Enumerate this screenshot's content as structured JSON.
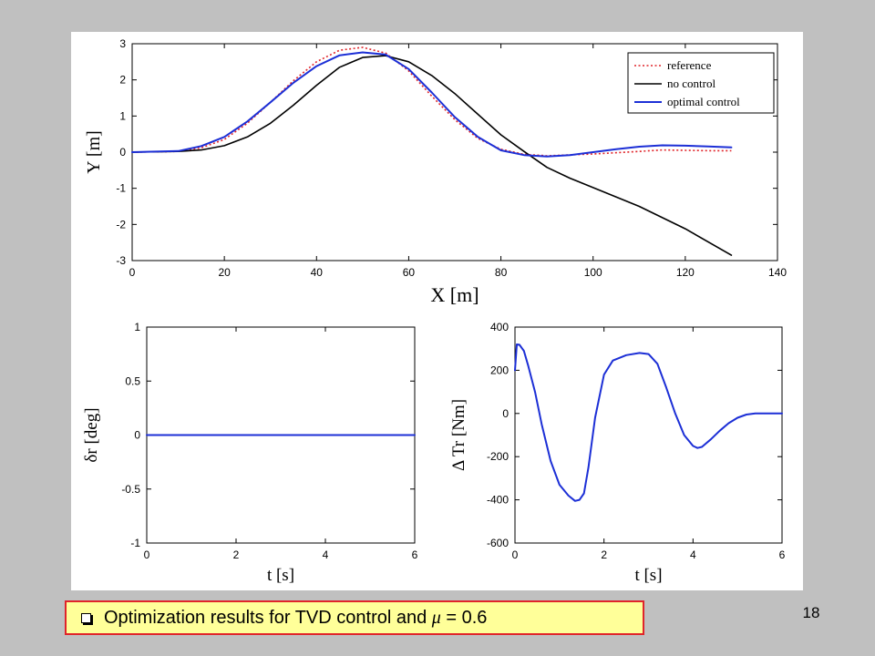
{
  "chart_data": [
    {
      "type": "line",
      "xlabel": "X [m]",
      "ylabel": "Y [m]",
      "xlim": [
        0,
        140
      ],
      "ylim": [
        -3,
        3
      ],
      "xticks": [
        0,
        20,
        40,
        60,
        80,
        100,
        120,
        140
      ],
      "yticks": [
        -3,
        -2,
        -1,
        0,
        1,
        2,
        3
      ],
      "grid": false,
      "legend_position": "top-right",
      "series": [
        {
          "name": "reference",
          "color": "#e0242a",
          "dash": "dotted",
          "x": [
            0,
            10,
            15,
            20,
            25,
            30,
            35,
            40,
            45,
            50,
            55,
            60,
            65,
            70,
            75,
            80,
            85,
            90,
            100,
            110,
            115,
            120,
            125,
            130
          ],
          "y": [
            0,
            0.02,
            0.12,
            0.35,
            0.8,
            1.38,
            1.98,
            2.5,
            2.82,
            2.9,
            2.74,
            2.25,
            1.55,
            0.9,
            0.38,
            0.08,
            -0.06,
            -0.1,
            -0.05,
            0.02,
            0.06,
            0.05,
            0.04,
            0.04
          ]
        },
        {
          "name": "no control",
          "color": "#000000",
          "dash": "solid",
          "x": [
            0,
            10,
            15,
            20,
            25,
            30,
            35,
            40,
            45,
            50,
            55,
            60,
            65,
            70,
            75,
            80,
            85,
            90,
            95,
            100,
            110,
            120,
            130
          ],
          "y": [
            0,
            0.02,
            0.06,
            0.18,
            0.42,
            0.8,
            1.3,
            1.85,
            2.35,
            2.62,
            2.67,
            2.5,
            2.12,
            1.62,
            1.05,
            0.48,
            0.02,
            -0.42,
            -0.72,
            -0.98,
            -1.5,
            -2.12,
            -2.85
          ]
        },
        {
          "name": "optimal control",
          "color": "#1c2fd6",
          "dash": "solid",
          "x": [
            0,
            10,
            15,
            20,
            25,
            30,
            35,
            40,
            45,
            50,
            55,
            60,
            65,
            70,
            75,
            80,
            85,
            90,
            95,
            100,
            105,
            110,
            115,
            120,
            125,
            130
          ],
          "y": [
            0,
            0.03,
            0.17,
            0.42,
            0.85,
            1.38,
            1.92,
            2.38,
            2.68,
            2.76,
            2.7,
            2.3,
            1.65,
            0.97,
            0.42,
            0.05,
            -0.08,
            -0.12,
            -0.08,
            0,
            0.08,
            0.15,
            0.19,
            0.18,
            0.16,
            0.13
          ]
        }
      ]
    },
    {
      "type": "line",
      "xlabel": "t [s]",
      "ylabel": "δr [deg]",
      "xlim": [
        0,
        6
      ],
      "ylim": [
        -1,
        1
      ],
      "xticks": [
        0,
        2,
        4,
        6
      ],
      "yticks": [
        -1,
        -0.5,
        0,
        0.5,
        1
      ],
      "grid": false,
      "series": [
        {
          "color": "#1c2fd6",
          "x": [
            0,
            6
          ],
          "y": [
            0,
            0
          ]
        }
      ]
    },
    {
      "type": "line",
      "xlabel": "t [s]",
      "ylabel": "Δ Tr [Nm]",
      "xlim": [
        0,
        6
      ],
      "ylim": [
        -600,
        400
      ],
      "xticks": [
        0,
        2,
        4,
        6
      ],
      "yticks": [
        -600,
        -400,
        -200,
        0,
        200,
        400
      ],
      "grid": false,
      "series": [
        {
          "color": "#1c2fd6",
          "x": [
            0,
            0.04,
            0.1,
            0.2,
            0.3,
            0.45,
            0.6,
            0.8,
            1.0,
            1.2,
            1.35,
            1.45,
            1.55,
            1.65,
            1.8,
            2.0,
            2.2,
            2.5,
            2.8,
            3.0,
            3.2,
            3.4,
            3.6,
            3.8,
            4.0,
            4.1,
            4.2,
            4.4,
            4.6,
            4.8,
            5.0,
            5.2,
            5.4,
            6.0
          ],
          "y": [
            200,
            320,
            318,
            290,
            220,
            100,
            -50,
            -220,
            -330,
            -380,
            -405,
            -400,
            -370,
            -250,
            -20,
            180,
            245,
            270,
            280,
            275,
            230,
            120,
            0,
            -100,
            -150,
            -160,
            -155,
            -120,
            -80,
            -45,
            -20,
            -5,
            0,
            0
          ]
        }
      ]
    }
  ],
  "caption": {
    "text_before": "Optimization results for TVD control and ",
    "symbol": "μ",
    "text_after": " = 0.6"
  },
  "page_number": "18",
  "colors": {
    "background": "#c0c0c0",
    "figure_background": "#ffffff",
    "caption_fill": "#ffff99",
    "caption_border": "#e0242a"
  }
}
